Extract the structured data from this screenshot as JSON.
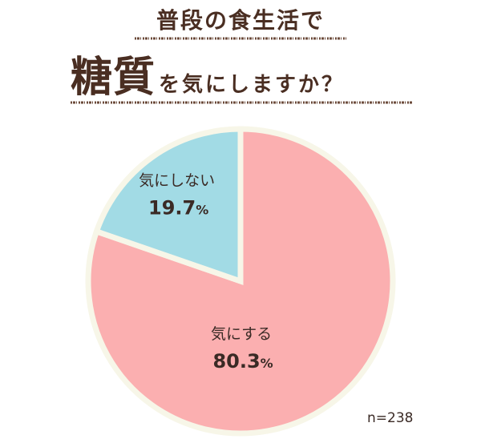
{
  "title": {
    "line1": "普段の食生活で",
    "emphasis": "糖質",
    "line2_rest": "を気にしますか？"
  },
  "colors": {
    "title": "#4a2e22",
    "rule": "#6b4a3a",
    "care": "#fbafb0",
    "not_care": "#a2dbe5",
    "separator": "#f7f6e8"
  },
  "sample_size": "n=238",
  "chart_data": {
    "type": "pie",
    "title": "普段の食生活で糖質を気にしますか？",
    "slices": [
      {
        "label": "気にする",
        "value": 80.3,
        "display": "80.3",
        "unit": "%",
        "color": "#fbafb0"
      },
      {
        "label": "気にしない",
        "value": 19.7,
        "display": "19.7",
        "unit": "%",
        "color": "#a2dbe5"
      }
    ],
    "start": "12 o'clock",
    "direction": "clockwise",
    "note": "n=238"
  }
}
